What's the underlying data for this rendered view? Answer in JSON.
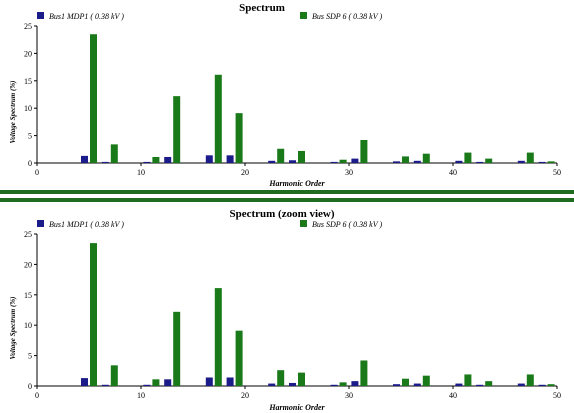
{
  "colors": {
    "series1": "#1b1b8a",
    "series2": "#1a7a1a",
    "separator": "#1f6b1f",
    "axis": "#000000"
  },
  "chart_data": [
    {
      "type": "bar",
      "title": "Spectrum",
      "xlabel": "Harmonic Order",
      "ylabel": "Voltage Spectrum (%)",
      "xlim": [
        0,
        50
      ],
      "ylim": [
        0,
        25
      ],
      "xticks": [
        "0",
        "10",
        "20",
        "30",
        "40",
        "50"
      ],
      "yticks": [
        "0",
        "5",
        "10",
        "15",
        "20",
        "25"
      ],
      "grid": false,
      "legend": "top",
      "x": [
        5,
        7,
        11,
        13,
        17,
        19,
        23,
        25,
        29,
        31,
        35,
        37,
        41,
        43,
        47,
        49
      ],
      "series": [
        {
          "name": "Bus1 MDP1 ( 0.38 kV )",
          "values": [
            1.3,
            0.2,
            0.2,
            1.1,
            1.4,
            1.4,
            0.4,
            0.5,
            0.2,
            0.8,
            0.3,
            0.4,
            0.4,
            0.2,
            0.4,
            0.2
          ]
        },
        {
          "name": "Bus SDP 6 ( 0.38 kV )",
          "values": [
            23.5,
            3.4,
            1.1,
            12.2,
            16.1,
            9.1,
            2.6,
            2.2,
            0.6,
            4.2,
            1.2,
            1.7,
            1.9,
            0.8,
            1.9,
            0.3
          ]
        }
      ]
    },
    {
      "type": "bar",
      "title": "Spectrum  (zoom view)",
      "xlabel": "Harmonic Order",
      "ylabel": "Voltage Spectrum (%)",
      "xlim": [
        0,
        50
      ],
      "ylim": [
        0,
        25
      ],
      "xticks": [
        "0",
        "10",
        "20",
        "30",
        "40",
        "50"
      ],
      "yticks": [
        "0",
        "5",
        "10",
        "15",
        "20",
        "25"
      ],
      "grid": false,
      "legend": "top",
      "x": [
        5,
        7,
        11,
        13,
        17,
        19,
        23,
        25,
        29,
        31,
        35,
        37,
        41,
        43,
        47,
        49
      ],
      "series": [
        {
          "name": "Bus1 MDP1 ( 0.38 kV )",
          "values": [
            1.3,
            0.2,
            0.2,
            1.1,
            1.4,
            1.4,
            0.4,
            0.5,
            0.2,
            0.8,
            0.3,
            0.4,
            0.4,
            0.2,
            0.4,
            0.2
          ]
        },
        {
          "name": "Bus SDP 6 ( 0.38 kV )",
          "values": [
            23.5,
            3.4,
            1.1,
            12.2,
            16.1,
            9.1,
            2.6,
            2.2,
            0.6,
            4.2,
            1.2,
            1.7,
            1.9,
            0.8,
            1.9,
            0.3
          ]
        }
      ]
    }
  ]
}
